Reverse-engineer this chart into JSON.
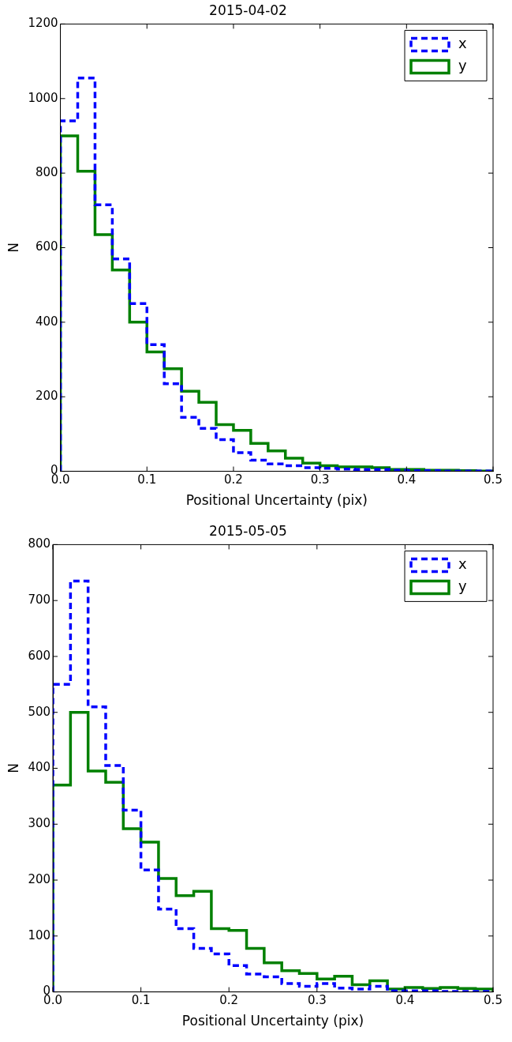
{
  "chart_data": [
    {
      "type": "histogram",
      "title": "2015-04-02",
      "xlabel": "Positional Uncertainty (pix)",
      "ylabel": "N",
      "bins": [
        0,
        0.02,
        0.04,
        0.06,
        0.08,
        0.1,
        0.12,
        0.14,
        0.16,
        0.18,
        0.2,
        0.22,
        0.24,
        0.26,
        0.28,
        0.3,
        0.32,
        0.34,
        0.36,
        0.38,
        0.4,
        0.42,
        0.44,
        0.46,
        0.48,
        0.5
      ],
      "xlim": [
        0,
        0.5
      ],
      "xticks": [
        {
          "value": 0,
          "label": "0.0"
        },
        0.1,
        0.2,
        0.3,
        0.4,
        0.5
      ],
      "ylim": [
        0,
        1200
      ],
      "yticks": [
        0,
        200,
        400,
        600,
        800,
        1000,
        1200
      ],
      "grid": false,
      "legend": "top right",
      "series": [
        {
          "name": "x",
          "color": "#0000ff",
          "line_style": "dashed",
          "values": [
            940,
            1055,
            715,
            570,
            450,
            340,
            235,
            145,
            115,
            85,
            50,
            30,
            20,
            15,
            10,
            8,
            6,
            5,
            5,
            3,
            2,
            2,
            1,
            1,
            1
          ]
        },
        {
          "name": "y",
          "color": "#008000",
          "line_style": "solid",
          "values": [
            900,
            805,
            635,
            540,
            400,
            320,
            275,
            215,
            185,
            125,
            110,
            75,
            55,
            35,
            22,
            15,
            12,
            12,
            10,
            5,
            5,
            3,
            3,
            2,
            1
          ]
        }
      ]
    },
    {
      "type": "histogram",
      "title": "2015-05-05",
      "xlabel": "Positional Uncertainty (pix)",
      "ylabel": "N",
      "bins": [
        0,
        0.02,
        0.04,
        0.06,
        0.08,
        0.1,
        0.12,
        0.14,
        0.16,
        0.18,
        0.2,
        0.22,
        0.24,
        0.26,
        0.28,
        0.3,
        0.32,
        0.34,
        0.36,
        0.38,
        0.4,
        0.42,
        0.44,
        0.46,
        0.48,
        0.5
      ],
      "xlim": [
        0,
        0.5
      ],
      "xticks": [
        {
          "value": 0,
          "label": "0.0"
        },
        0.1,
        0.2,
        0.3,
        0.4,
        0.5
      ],
      "ylim": [
        0,
        800
      ],
      "yticks": [
        0,
        100,
        200,
        300,
        400,
        500,
        600,
        700,
        800
      ],
      "grid": false,
      "legend": "top right",
      "series": [
        {
          "name": "x",
          "color": "#0000ff",
          "line_style": "dashed",
          "values": [
            550,
            735,
            510,
            405,
            325,
            218,
            148,
            113,
            78,
            68,
            47,
            32,
            27,
            15,
            10,
            15,
            7,
            5,
            10,
            2,
            2,
            2,
            1,
            1,
            1
          ]
        },
        {
          "name": "y",
          "color": "#008000",
          "line_style": "solid",
          "values": [
            370,
            500,
            395,
            375,
            292,
            268,
            203,
            172,
            180,
            113,
            110,
            78,
            52,
            38,
            33,
            23,
            28,
            13,
            20,
            5,
            8,
            6,
            8,
            6,
            5
          ]
        }
      ]
    }
  ]
}
